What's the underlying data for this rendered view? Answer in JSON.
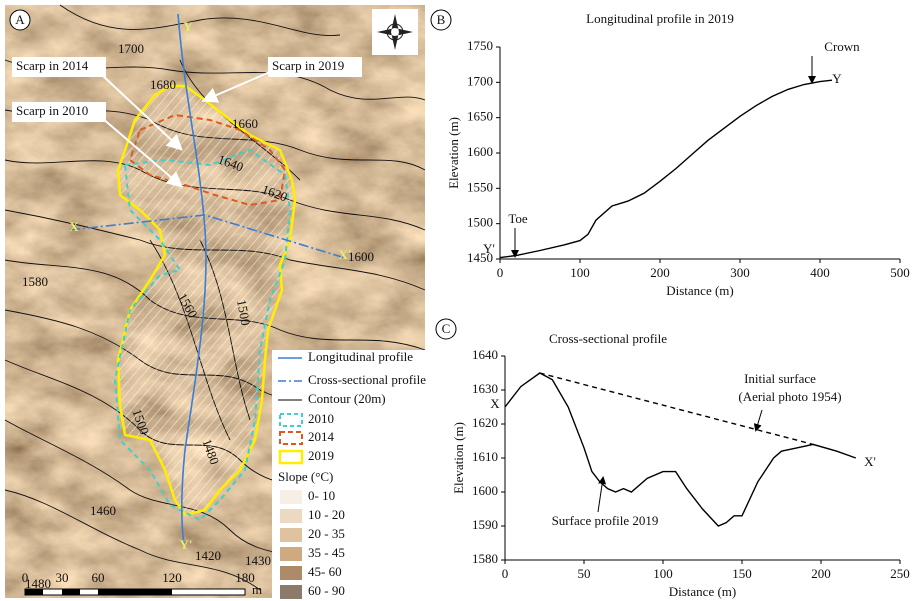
{
  "map": {
    "panel_label": "A",
    "points": [
      "Y",
      "X",
      "X'",
      "Y'"
    ],
    "scarps": [
      "Scarp in 2014",
      "Scarp in 2019",
      "Scarp in 2010"
    ],
    "contour_labels": [
      "1700",
      "1680",
      "1660",
      "1640",
      "1620",
      "1600",
      "1580",
      "1560",
      "1500",
      "1500",
      "1480",
      "1460",
      "1420",
      "1430",
      "1480"
    ],
    "legend": {
      "items": [
        "Longitudinal profile",
        "Cross-sectional profile",
        "Contour (20m)",
        "2010",
        "2014",
        "2019"
      ],
      "slope_title": "Slope (°C)",
      "slope_classes": [
        "0- 10",
        "10 - 20",
        "20 - 35",
        "35 - 45",
        "45- 60",
        "60 - 90"
      ]
    },
    "scale_bar": {
      "ticks": [
        "0",
        "30",
        "60",
        "120",
        "180"
      ],
      "unit": "m"
    }
  },
  "chart_data": [
    {
      "type": "line",
      "panel_label": "B",
      "title": "Longitudinal profile in 2019",
      "x_label": "Distance (m)",
      "y_label": "Elevation (m)",
      "xlim": [
        0,
        500
      ],
      "xticks": [
        0,
        100,
        200,
        300,
        400,
        500
      ],
      "ylim": [
        1450,
        1750
      ],
      "yticks": [
        1450,
        1500,
        1550,
        1600,
        1650,
        1700,
        1750
      ],
      "color": "#000000",
      "lines": [
        {
          "style": "solid",
          "x": [
            0,
            20,
            50,
            80,
            100,
            110,
            120,
            140,
            160,
            180,
            200,
            220,
            240,
            260,
            280,
            300,
            320,
            340,
            360,
            380,
            400,
            415
          ],
          "y": [
            1452,
            1455,
            1462,
            1470,
            1476,
            1485,
            1505,
            1525,
            1532,
            1543,
            1560,
            1578,
            1598,
            1618,
            1635,
            1652,
            1667,
            1680,
            1690,
            1697,
            1701,
            1703
          ]
        }
      ],
      "annotations": [
        "Crown",
        "Y",
        "Toe",
        "Y'"
      ]
    },
    {
      "type": "line",
      "panel_label": "C",
      "title": "Cross-sectional profile",
      "x_label": "Distance (m)",
      "y_label": "Elevation (m)",
      "xlim": [
        0,
        250
      ],
      "xticks": [
        0,
        50,
        100,
        150,
        200,
        250
      ],
      "ylim": [
        1580,
        1640
      ],
      "yticks": [
        1580,
        1590,
        1600,
        1610,
        1620,
        1630,
        1640
      ],
      "color": "#000000",
      "lines": [
        {
          "style": "solid",
          "x": [
            0,
            10,
            22,
            30,
            40,
            50,
            55,
            60,
            65,
            70,
            75,
            80,
            90,
            100,
            108,
            115,
            125,
            135,
            140,
            145,
            150,
            160,
            170,
            175,
            185,
            195,
            210,
            222
          ],
          "y": [
            1625,
            1631,
            1635,
            1633,
            1625,
            1613,
            1606,
            1603,
            1601,
            1600,
            1601,
            1600,
            1604,
            1606,
            1606,
            1601,
            1595,
            1590,
            1591,
            1593,
            1593,
            1603,
            1610,
            1612,
            1613,
            1614,
            1612,
            1610
          ]
        },
        {
          "style": "dashed",
          "x": [
            22,
            195
          ],
          "y": [
            1635,
            1614
          ]
        }
      ],
      "annotations": [
        "X",
        "X'",
        "Initial surface",
        "(Aerial photo 1954)",
        "Surface profile 2019"
      ]
    }
  ]
}
